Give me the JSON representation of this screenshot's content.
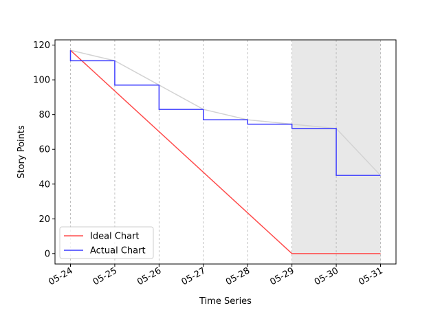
{
  "chart_data": {
    "type": "line",
    "title": "",
    "xlabel": "Time Series",
    "ylabel": "Story Points",
    "x": [
      "05-24",
      "05-25",
      "05-26",
      "05-27",
      "05-28",
      "05-29",
      "05-30",
      "05-31"
    ],
    "ylim": [
      -6,
      123
    ],
    "yticks": [
      0,
      20,
      40,
      60,
      80,
      100,
      120
    ],
    "grid": "vertical-dashed",
    "legend_position": "lower-left",
    "shaded_range": [
      "05-29",
      "05-31"
    ],
    "series": [
      {
        "name": "Ideal Chart",
        "color": "#ff4d4d",
        "style": "line",
        "values": [
          117,
          93.6,
          70.2,
          46.8,
          23.4,
          0,
          0,
          0
        ]
      },
      {
        "name": "Actual Chart",
        "color": "#3b3bff",
        "style": "step",
        "values": [
          111,
          97,
          83,
          77,
          74.5,
          72,
          45,
          45
        ]
      },
      {
        "name": "",
        "color": "#d3d3d3",
        "style": "line",
        "values": [
          117,
          111,
          97,
          83,
          77,
          74.5,
          72,
          45
        ]
      }
    ]
  }
}
